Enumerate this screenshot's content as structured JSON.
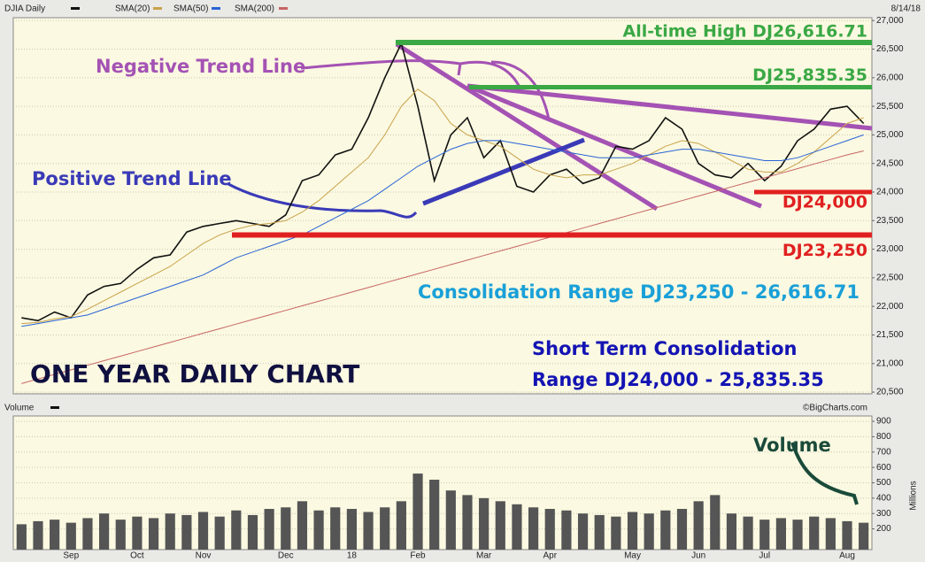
{
  "chart_data": [
    {
      "type": "line",
      "title": "DJIA Daily",
      "date": "8/14/18",
      "series": [
        {
          "name": "DJIA Daily",
          "color": "#111111",
          "values": [
            21800,
            21750,
            21900,
            21800,
            22200,
            22350,
            22400,
            22650,
            22850,
            22900,
            23300,
            23400,
            23450,
            23500,
            23450,
            23400,
            23600,
            24200,
            24300,
            24650,
            24750,
            25300,
            26000,
            26600,
            25500,
            24200,
            25000,
            25300,
            24600,
            24900,
            24100,
            24000,
            24300,
            24400,
            24150,
            24250,
            24800,
            24750,
            24900,
            25300,
            25100,
            24500,
            24300,
            24250,
            24500,
            24200,
            24450,
            24900,
            25100,
            25450,
            25500,
            25200
          ]
        },
        {
          "name": "SMA(20)",
          "color": "#c9a24a",
          "values": [
            21700,
            21720,
            21780,
            21820,
            21950,
            22100,
            22250,
            22400,
            22550,
            22700,
            22900,
            23100,
            23250,
            23350,
            23420,
            23450,
            23500,
            23650,
            23850,
            24100,
            24350,
            24600,
            25000,
            25500,
            25800,
            25600,
            25200,
            25000,
            24900,
            24800,
            24600,
            24400,
            24300,
            24250,
            24300,
            24300,
            24400,
            24500,
            24650,
            24800,
            24900,
            24850,
            24700,
            24550,
            24400,
            24350,
            24350,
            24500,
            24700,
            24950,
            25200,
            25300
          ]
        },
        {
          "name": "SMA(50)",
          "color": "#2a64d6",
          "values": [
            21650,
            21700,
            21750,
            21800,
            21850,
            21950,
            22050,
            22150,
            22250,
            22350,
            22450,
            22550,
            22700,
            22850,
            22950,
            23050,
            23150,
            23250,
            23400,
            23550,
            23700,
            23850,
            24050,
            24250,
            24450,
            24600,
            24750,
            24850,
            24900,
            24900,
            24850,
            24800,
            24750,
            24700,
            24650,
            24600,
            24600,
            24600,
            24650,
            24700,
            24750,
            24750,
            24700,
            24650,
            24600,
            24550,
            24550,
            24600,
            24700,
            24800,
            24900,
            25000
          ]
        },
        {
          "name": "SMA(200)",
          "color": "#c86464",
          "values": [
            20650,
            20730,
            20810,
            20890,
            20970,
            21050,
            21130,
            21210,
            21290,
            21370,
            21450,
            21530,
            21610,
            21690,
            21770,
            21850,
            21930,
            22010,
            22090,
            22170,
            22250,
            22330,
            22410,
            22490,
            22570,
            22650,
            22730,
            22810,
            22890,
            22970,
            23050,
            23130,
            23210,
            23290,
            23370,
            23450,
            23530,
            23610,
            23690,
            23770,
            23850,
            23930,
            24010,
            24090,
            24170,
            24250,
            24330,
            24410,
            24490,
            24570,
            24650,
            24720
          ]
        }
      ],
      "ylim": [
        20470,
        27050
      ],
      "yticks": [
        {
          "value": 20500,
          "label": "20,500"
        },
        {
          "value": 21000,
          "label": "21,000"
        },
        {
          "value": 21500,
          "label": "21,500"
        },
        {
          "value": 22000,
          "label": "22,000"
        },
        {
          "value": 22500,
          "label": "22,500"
        },
        {
          "value": 23000,
          "label": "23,000"
        },
        {
          "value": 23500,
          "label": "23,500"
        },
        {
          "value": 24000,
          "label": "24,000"
        },
        {
          "value": 24500,
          "label": "24,500"
        },
        {
          "value": 25000,
          "label": "25,000"
        },
        {
          "value": 25500,
          "label": "25,500"
        },
        {
          "value": 26000,
          "label": "26,000"
        },
        {
          "value": 26500,
          "label": "26,500"
        },
        {
          "value": 27000,
          "label": "27,000"
        }
      ],
      "grid": true,
      "levels": [
        {
          "value": 26616.71,
          "label": "All-time High DJ26,616.71",
          "color": "#3aa845"
        },
        {
          "value": 25835.35,
          "label": "DJ25,835.35",
          "color": "#3aa845"
        },
        {
          "value": 24000,
          "label": "DJ24,000",
          "color": "#e02020"
        },
        {
          "value": 23250,
          "label": "DJ23,250",
          "color": "#e02020"
        }
      ],
      "annotations": {
        "negative": "Negative Trend Line",
        "positive": "Positive Trend Line",
        "range": "Consolidation Range DJ23,250 - 26,616.71",
        "short_term": [
          "Short Term Consolidation",
          "Range DJ24,000 - 25,835.35"
        ],
        "heading": "ONE YEAR DAILY CHART"
      }
    },
    {
      "type": "bar",
      "title": "Volume",
      "source": "©BigCharts.com",
      "unit": "Millions",
      "color": "#555555",
      "annotation": "Volume",
      "categories": [
        null,
        null,
        null,
        "Sep",
        null,
        null,
        null,
        "Oct",
        null,
        null,
        null,
        "Nov",
        null,
        null,
        null,
        null,
        "Dec",
        null,
        null,
        null,
        "18",
        null,
        null,
        null,
        "Feb",
        null,
        null,
        null,
        "Mar",
        null,
        null,
        null,
        "Apr",
        null,
        null,
        null,
        null,
        "May",
        null,
        null,
        null,
        "Jun",
        null,
        null,
        null,
        "Jul",
        null,
        null,
        null,
        null,
        "Aug",
        null
      ],
      "values": [
        230,
        250,
        260,
        240,
        270,
        300,
        260,
        280,
        270,
        300,
        290,
        310,
        280,
        320,
        290,
        330,
        340,
        380,
        320,
        340,
        330,
        310,
        340,
        380,
        560,
        520,
        450,
        420,
        400,
        380,
        360,
        340,
        330,
        320,
        300,
        290,
        280,
        310,
        300,
        320,
        330,
        380,
        420,
        300,
        280,
        260,
        270,
        260,
        280,
        270,
        250,
        240
      ],
      "ylim": [
        65,
        935
      ],
      "yticks": [
        200,
        300,
        400,
        500,
        600,
        700,
        800,
        900
      ],
      "grid": true
    }
  ]
}
